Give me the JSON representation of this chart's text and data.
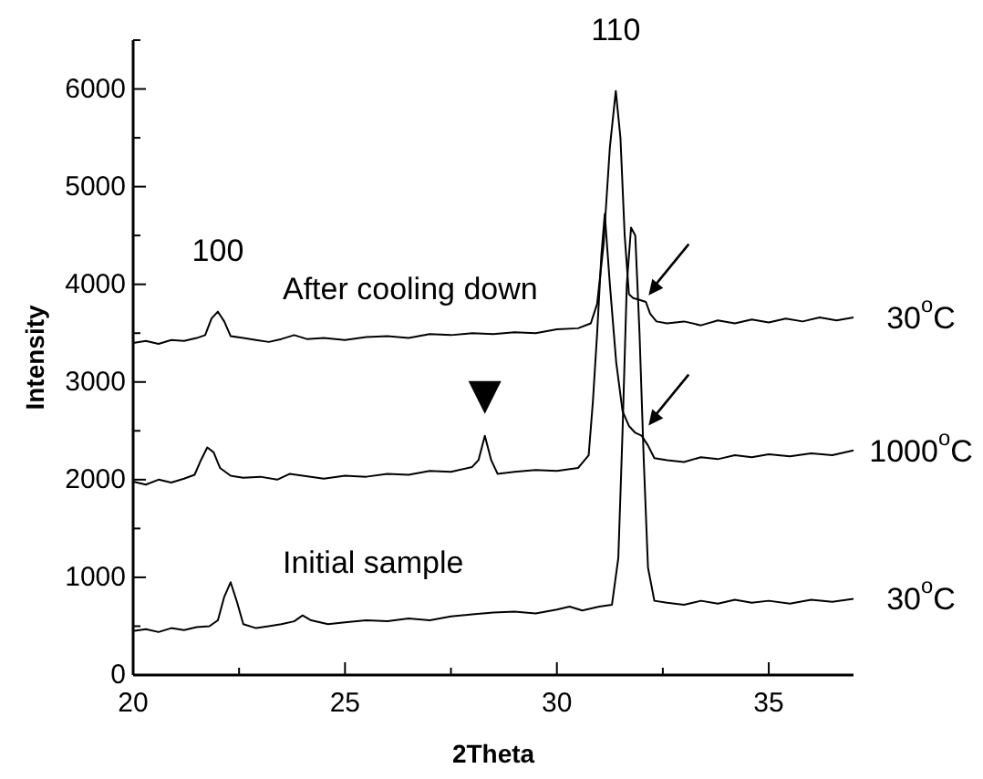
{
  "chart_data": {
    "type": "line",
    "xlabel": "2Theta",
    "ylabel": "Intensity",
    "xlim": [
      20,
      37
    ],
    "ylim": [
      0,
      6500
    ],
    "xticks": [
      20,
      {
        "value": 22.5,
        "label": null
      },
      25,
      {
        "value": 27.5,
        "label": null
      },
      30,
      {
        "value": 32.5,
        "label": null
      },
      35
    ],
    "yticks": [
      0,
      {
        "value": 500,
        "label": null
      },
      1000,
      {
        "value": 1500,
        "label": null
      },
      2000,
      {
        "value": 2500,
        "label": null
      },
      3000,
      {
        "value": 3500,
        "label": null
      },
      4000,
      {
        "value": 4500,
        "label": null
      },
      5000,
      {
        "value": 5500,
        "label": null
      },
      6000,
      {
        "value": 6500,
        "label": null
      }
    ],
    "grid": false,
    "marker": "none",
    "line_style": "solid",
    "series": [
      {
        "name": "30$^{o}$C",
        "color": "#000000",
        "x": [
          20,
          20.3,
          20.6,
          20.9,
          21.2,
          21.5,
          21.7,
          21.85,
          22.0,
          22.15,
          22.3,
          22.6,
          22.9,
          23.2,
          23.5,
          23.8,
          24.1,
          24.5,
          25,
          25.5,
          26,
          26.5,
          27,
          27.5,
          28,
          28.5,
          29,
          29.5,
          30,
          30.5,
          30.8,
          30.95,
          31.1,
          31.25,
          31.39,
          31.5,
          31.6,
          31.7,
          31.8,
          31.95,
          32.1,
          32.2,
          32.35,
          32.6,
          33,
          33.4,
          33.8,
          34.2,
          34.6,
          35,
          35.4,
          35.8,
          36.2,
          36.6,
          37
        ],
        "values": [
          3400,
          3420,
          3390,
          3430,
          3420,
          3450,
          3480,
          3650,
          3720,
          3620,
          3470,
          3450,
          3430,
          3410,
          3440,
          3480,
          3440,
          3450,
          3430,
          3460,
          3470,
          3450,
          3490,
          3480,
          3500,
          3490,
          3510,
          3500,
          3540,
          3550,
          3600,
          3800,
          4400,
          5400,
          5980,
          5500,
          4500,
          3900,
          3860,
          3840,
          3820,
          3700,
          3620,
          3600,
          3620,
          3580,
          3630,
          3600,
          3640,
          3610,
          3650,
          3620,
          3660,
          3630,
          3660
        ]
      },
      {
        "name": "1000$^{o}$C",
        "color": "#000000",
        "x": [
          20,
          20.3,
          20.6,
          20.9,
          21.2,
          21.45,
          21.6,
          21.75,
          21.9,
          22.05,
          22.3,
          22.6,
          23,
          23.4,
          23.7,
          24,
          24.5,
          25,
          25.5,
          26,
          26.5,
          27,
          27.5,
          28,
          28.15,
          28.3,
          28.45,
          28.6,
          29,
          29.5,
          30,
          30.5,
          30.75,
          30.85,
          30.95,
          31.05,
          31.13,
          31.25,
          31.4,
          31.55,
          31.7,
          31.85,
          32.0,
          32.15,
          32.3,
          32.6,
          33,
          33.4,
          33.8,
          34.2,
          34.6,
          35,
          35.5,
          36,
          36.5,
          37
        ],
        "values": [
          1980,
          1950,
          2000,
          1970,
          2010,
          2050,
          2200,
          2330,
          2280,
          2120,
          2040,
          2020,
          2030,
          2000,
          2060,
          2040,
          2010,
          2040,
          2030,
          2060,
          2050,
          2090,
          2080,
          2130,
          2200,
          2450,
          2200,
          2060,
          2080,
          2100,
          2090,
          2120,
          2250,
          2800,
          3500,
          4300,
          4720,
          4000,
          3200,
          2700,
          2550,
          2480,
          2450,
          2350,
          2220,
          2200,
          2180,
          2230,
          2210,
          2250,
          2230,
          2260,
          2240,
          2270,
          2250,
          2300
        ]
      },
      {
        "name": "30$^{o}$C",
        "color": "#000000",
        "x": [
          20,
          20.3,
          20.6,
          20.9,
          21.2,
          21.5,
          21.8,
          22.0,
          22.15,
          22.3,
          22.45,
          22.6,
          22.9,
          23.2,
          23.5,
          23.8,
          24.0,
          24.2,
          24.6,
          25,
          25.5,
          26,
          26.5,
          27,
          27.5,
          28,
          28.5,
          29,
          29.5,
          30,
          30.3,
          30.6,
          31,
          31.3,
          31.45,
          31.55,
          31.65,
          31.75,
          31.85,
          31.95,
          32.05,
          32.15,
          32.3,
          32.6,
          33,
          33.4,
          33.8,
          34.2,
          34.6,
          35,
          35.5,
          36,
          36.5,
          37
        ],
        "values": [
          450,
          470,
          440,
          480,
          460,
          490,
          500,
          560,
          800,
          950,
          750,
          520,
          480,
          500,
          520,
          550,
          610,
          560,
          520,
          540,
          560,
          550,
          580,
          560,
          600,
          620,
          640,
          650,
          630,
          670,
          700,
          660,
          700,
          720,
          1200,
          2500,
          4000,
          4580,
          4500,
          3500,
          2200,
          1100,
          760,
          740,
          720,
          760,
          730,
          770,
          740,
          760,
          730,
          770,
          750,
          780
        ]
      }
    ],
    "annotations": [
      {
        "text": "100",
        "x": 22.0,
        "y": 3720
      },
      {
        "text": "110",
        "x": 31.39,
        "y": 5980
      },
      "After cooling down",
      "Initial sample"
    ]
  }
}
